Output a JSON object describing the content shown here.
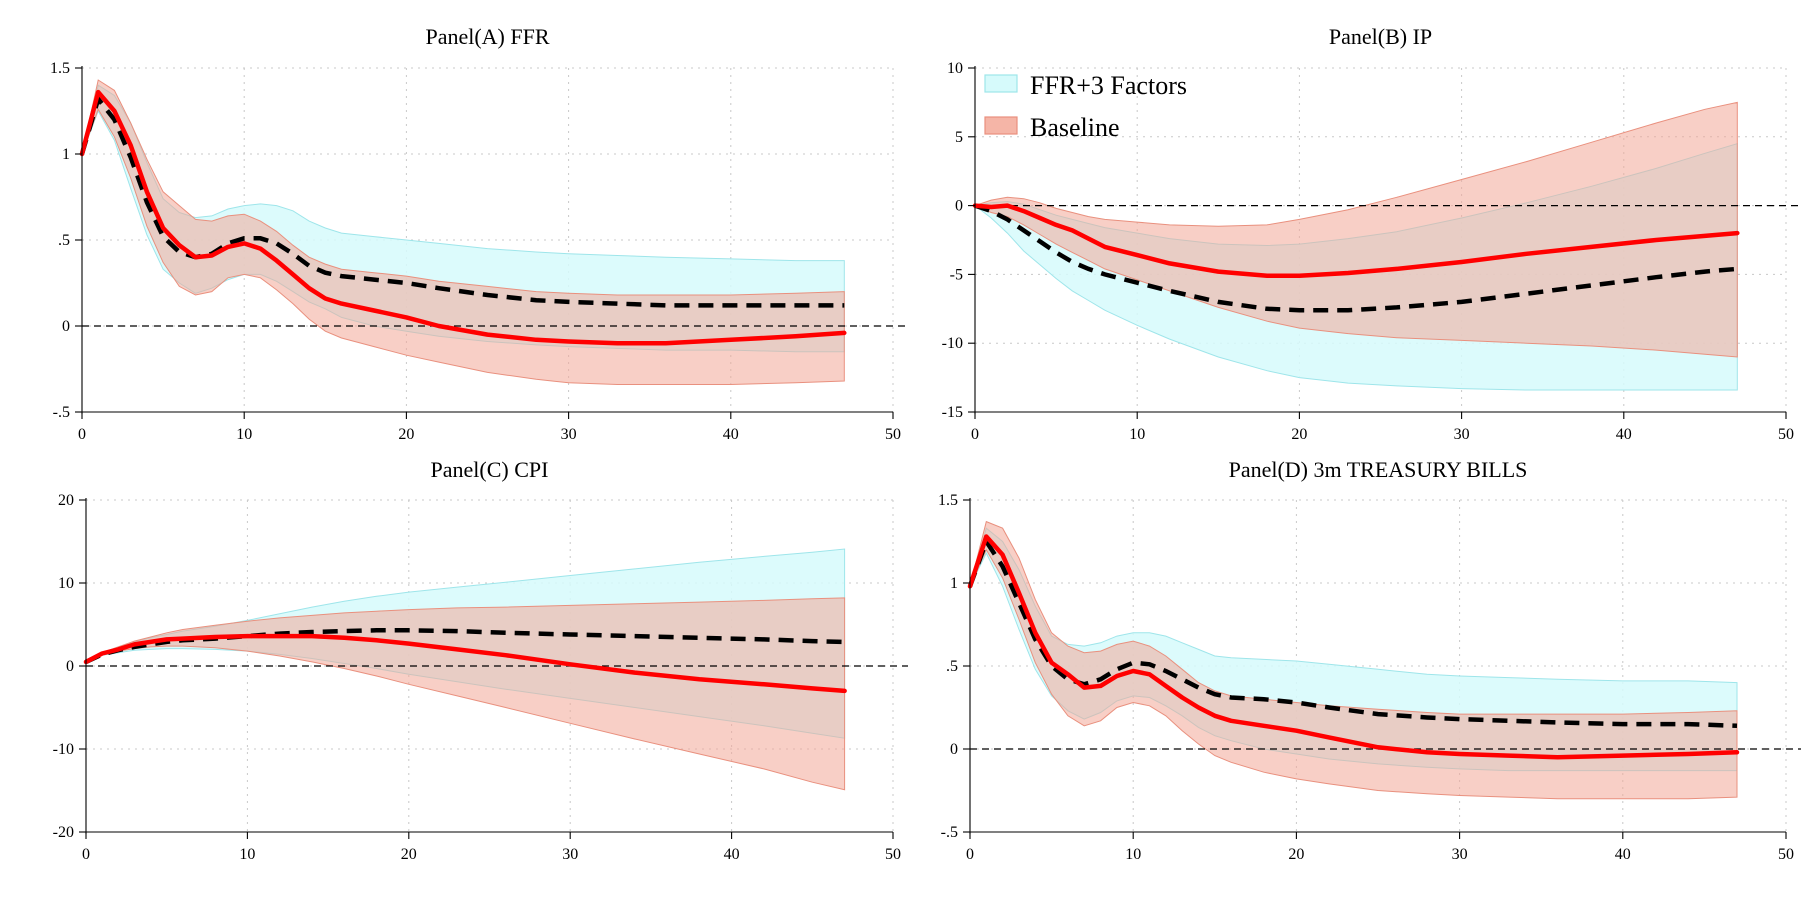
{
  "legend": {
    "position": "top-left of Panel(B)",
    "items": [
      {
        "label": "FFR+3 Factors",
        "color": "#d6fafb"
      },
      {
        "label": "Baseline",
        "color": "#f3a898"
      }
    ]
  },
  "colors": {
    "baseline_line": "#ff0000",
    "factor_line": "#000000",
    "factor_band": "#d6fafb",
    "baseline_band": "#f3a898"
  },
  "chart_data": [
    {
      "type": "line",
      "title": "Panel(A) FFR",
      "xlim": [
        0,
        50
      ],
      "ylim": [
        -0.5,
        1.5
      ],
      "xticks": [
        0,
        10,
        20,
        30,
        40,
        50
      ],
      "yticks": [
        -0.5,
        0,
        0.5,
        1,
        1.5
      ],
      "ytick_labels": [
        "-.5",
        "0",
        ".5",
        "1",
        "1.5"
      ],
      "zero_line": true,
      "grid": true,
      "x": [
        0,
        1,
        2,
        3,
        4,
        5,
        6,
        7,
        8,
        9,
        10,
        11,
        12,
        13,
        14,
        15,
        16,
        18,
        20,
        22,
        25,
        28,
        30,
        33,
        36,
        40,
        44,
        47
      ],
      "series": [
        {
          "name": "Baseline",
          "style": "solid-red",
          "values": [
            1.0,
            1.36,
            1.25,
            1.05,
            0.78,
            0.57,
            0.47,
            0.4,
            0.41,
            0.46,
            0.48,
            0.45,
            0.38,
            0.3,
            0.22,
            0.16,
            0.13,
            0.09,
            0.05,
            0.0,
            -0.05,
            -0.08,
            -0.09,
            -0.1,
            -0.1,
            -0.08,
            -0.06,
            -0.04
          ]
        },
        {
          "name": "FFR+3 Factors",
          "style": "dashed-black",
          "values": [
            1.0,
            1.32,
            1.2,
            0.98,
            0.72,
            0.52,
            0.43,
            0.4,
            0.42,
            0.48,
            0.51,
            0.51,
            0.48,
            0.42,
            0.35,
            0.31,
            0.29,
            0.27,
            0.25,
            0.22,
            0.18,
            0.15,
            0.14,
            0.13,
            0.12,
            0.12,
            0.12,
            0.12
          ]
        },
        {
          "name": "FFR+3 Factors band",
          "style": "band-cyan",
          "upper": [
            1.0,
            1.4,
            1.34,
            1.18,
            0.95,
            0.74,
            0.66,
            0.63,
            0.64,
            0.68,
            0.7,
            0.71,
            0.7,
            0.67,
            0.61,
            0.57,
            0.54,
            0.52,
            0.5,
            0.48,
            0.45,
            0.43,
            0.42,
            0.41,
            0.4,
            0.39,
            0.38,
            0.38
          ],
          "lower": [
            1.0,
            1.25,
            1.08,
            0.8,
            0.53,
            0.33,
            0.25,
            0.19,
            0.22,
            0.27,
            0.3,
            0.3,
            0.26,
            0.2,
            0.14,
            0.1,
            0.05,
            0.0,
            -0.03,
            -0.06,
            -0.09,
            -0.11,
            -0.12,
            -0.13,
            -0.14,
            -0.14,
            -0.15,
            -0.15
          ]
        },
        {
          "name": "Baseline band",
          "style": "band-red",
          "upper": [
            1.0,
            1.43,
            1.37,
            1.18,
            0.97,
            0.78,
            0.7,
            0.62,
            0.61,
            0.64,
            0.65,
            0.61,
            0.55,
            0.47,
            0.4,
            0.36,
            0.33,
            0.31,
            0.29,
            0.26,
            0.23,
            0.2,
            0.19,
            0.18,
            0.18,
            0.18,
            0.19,
            0.2
          ]
        },
        {
          "name": "Baseline band lower",
          "style": "band-red-lower",
          "lower": [
            1.0,
            1.26,
            1.1,
            0.86,
            0.58,
            0.37,
            0.23,
            0.18,
            0.2,
            0.28,
            0.3,
            0.28,
            0.21,
            0.13,
            0.04,
            -0.03,
            -0.07,
            -0.12,
            -0.17,
            -0.21,
            -0.27,
            -0.31,
            -0.33,
            -0.34,
            -0.34,
            -0.34,
            -0.33,
            -0.32
          ]
        }
      ]
    },
    {
      "type": "line",
      "title": "Panel(B) IP",
      "xlim": [
        0,
        50
      ],
      "ylim": [
        -15,
        10
      ],
      "xticks": [
        0,
        10,
        20,
        30,
        40,
        50
      ],
      "yticks": [
        -15,
        -10,
        -5,
        0,
        5,
        10
      ],
      "ytick_labels": [
        "-15",
        "-10",
        "-5",
        "0",
        "5",
        "10"
      ],
      "zero_line": true,
      "grid": true,
      "x": [
        0,
        1,
        2,
        3,
        4,
        5,
        6,
        7,
        8,
        10,
        12,
        15,
        18,
        20,
        23,
        26,
        30,
        34,
        38,
        42,
        45,
        47
      ],
      "series": [
        {
          "name": "Baseline",
          "style": "solid-red",
          "values": [
            0.0,
            -0.1,
            0.0,
            -0.4,
            -0.9,
            -1.4,
            -1.8,
            -2.4,
            -3.0,
            -3.6,
            -4.2,
            -4.8,
            -5.1,
            -5.1,
            -4.9,
            -4.6,
            -4.1,
            -3.5,
            -3.0,
            -2.5,
            -2.2,
            -2.0
          ]
        },
        {
          "name": "FFR+3 Factors",
          "style": "dashed-black",
          "values": [
            0.0,
            -0.4,
            -1.0,
            -1.8,
            -2.6,
            -3.4,
            -4.1,
            -4.6,
            -5.0,
            -5.6,
            -6.2,
            -7.0,
            -7.5,
            -7.6,
            -7.6,
            -7.4,
            -7.0,
            -6.4,
            -5.8,
            -5.2,
            -4.8,
            -4.6
          ]
        },
        {
          "name": "FFR+3 Factors band",
          "style": "band-cyan",
          "upper": [
            0.0,
            0.2,
            0.3,
            0.1,
            -0.3,
            -0.7,
            -1.0,
            -1.3,
            -1.6,
            -2.0,
            -2.4,
            -2.8,
            -2.9,
            -2.8,
            -2.4,
            -1.9,
            -0.9,
            0.2,
            1.4,
            2.7,
            3.8,
            4.5
          ],
          "lower": [
            0.0,
            -0.9,
            -2.0,
            -3.3,
            -4.3,
            -5.3,
            -6.2,
            -6.9,
            -7.6,
            -8.7,
            -9.7,
            -11.0,
            -12.0,
            -12.5,
            -12.9,
            -13.1,
            -13.3,
            -13.4,
            -13.4,
            -13.4,
            -13.4,
            -13.4
          ]
        },
        {
          "name": "Baseline band",
          "style": "band-red",
          "upper": [
            0.0,
            0.4,
            0.6,
            0.5,
            0.2,
            -0.2,
            -0.5,
            -0.8,
            -1.0,
            -1.2,
            -1.4,
            -1.5,
            -1.4,
            -1.0,
            -0.3,
            0.6,
            1.9,
            3.2,
            4.6,
            6.0,
            7.0,
            7.5
          ]
        },
        {
          "name": "Baseline band lower",
          "style": "band-red-lower",
          "lower": [
            0.0,
            -0.5,
            -0.8,
            -1.4,
            -2.1,
            -2.8,
            -3.4,
            -4.0,
            -4.6,
            -5.4,
            -6.2,
            -7.4,
            -8.4,
            -8.9,
            -9.3,
            -9.6,
            -9.8,
            -10.0,
            -10.2,
            -10.5,
            -10.8,
            -11.0
          ]
        }
      ]
    },
    {
      "type": "line",
      "title": "Panel(C) CPI",
      "xlim": [
        0,
        50
      ],
      "ylim": [
        -20,
        20
      ],
      "xticks": [
        0,
        10,
        20,
        30,
        40,
        50
      ],
      "yticks": [
        -20,
        -10,
        0,
        10,
        20
      ],
      "ytick_labels": [
        "-20",
        "-10",
        "0",
        "10",
        "20"
      ],
      "zero_line": true,
      "grid": true,
      "x": [
        0,
        1,
        2,
        3,
        4,
        5,
        6,
        8,
        10,
        12,
        14,
        16,
        18,
        20,
        23,
        26,
        30,
        34,
        38,
        42,
        45,
        47
      ],
      "series": [
        {
          "name": "Baseline",
          "style": "solid-red",
          "values": [
            0.5,
            1.5,
            2.0,
            2.6,
            2.9,
            3.2,
            3.3,
            3.5,
            3.6,
            3.6,
            3.6,
            3.4,
            3.1,
            2.7,
            2.0,
            1.3,
            0.2,
            -0.8,
            -1.6,
            -2.2,
            -2.7,
            -3.0
          ]
        },
        {
          "name": "FFR+3 Factors",
          "style": "dashed-black",
          "values": [
            0.5,
            1.4,
            1.9,
            2.3,
            2.6,
            2.9,
            3.1,
            3.3,
            3.6,
            3.9,
            4.1,
            4.2,
            4.3,
            4.3,
            4.2,
            4.0,
            3.8,
            3.6,
            3.4,
            3.2,
            3.0,
            2.9
          ]
        },
        {
          "name": "FFR+3 Factors band",
          "style": "band-cyan",
          "upper": [
            0.5,
            1.6,
            2.3,
            2.9,
            3.4,
            3.8,
            4.2,
            4.8,
            5.5,
            6.3,
            7.1,
            7.8,
            8.4,
            8.9,
            9.5,
            10.1,
            10.9,
            11.7,
            12.5,
            13.2,
            13.7,
            14.1
          ],
          "lower": [
            0.5,
            1.3,
            1.6,
            1.9,
            2.0,
            2.1,
            2.1,
            2.0,
            1.8,
            1.4,
            0.9,
            0.3,
            -0.3,
            -1.0,
            -1.9,
            -2.8,
            -3.9,
            -5.0,
            -6.1,
            -7.2,
            -8.1,
            -8.7
          ]
        },
        {
          "name": "Baseline band",
          "style": "band-red",
          "upper": [
            0.5,
            1.6,
            2.3,
            3.0,
            3.5,
            4.0,
            4.4,
            4.9,
            5.4,
            5.8,
            6.1,
            6.4,
            6.6,
            6.8,
            7.0,
            7.1,
            7.3,
            7.5,
            7.7,
            7.9,
            8.1,
            8.2
          ]
        },
        {
          "name": "Baseline band lower",
          "style": "band-red-lower",
          "lower": [
            0.5,
            1.4,
            1.8,
            2.1,
            2.3,
            2.4,
            2.4,
            2.2,
            1.8,
            1.2,
            0.5,
            -0.3,
            -1.2,
            -2.2,
            -3.6,
            -5.0,
            -6.9,
            -8.8,
            -10.6,
            -12.4,
            -14.0,
            -14.9
          ]
        }
      ]
    },
    {
      "type": "line",
      "title": "Panel(D) 3m TREASURY BILLS",
      "xlim": [
        0,
        50
      ],
      "ylim": [
        -0.5,
        1.5
      ],
      "xticks": [
        0,
        10,
        20,
        30,
        40,
        50
      ],
      "yticks": [
        -0.5,
        0,
        0.5,
        1,
        1.5
      ],
      "ytick_labels": [
        "-.5",
        "0",
        ".5",
        "1",
        "1.5"
      ],
      "zero_line": true,
      "grid": true,
      "x": [
        0,
        1,
        2,
        3,
        4,
        5,
        6,
        7,
        8,
        9,
        10,
        11,
        12,
        13,
        14,
        15,
        16,
        18,
        20,
        22,
        25,
        28,
        30,
        33,
        36,
        40,
        44,
        47
      ],
      "series": [
        {
          "name": "Baseline",
          "style": "solid-red",
          "values": [
            0.98,
            1.28,
            1.17,
            0.94,
            0.7,
            0.52,
            0.45,
            0.37,
            0.38,
            0.44,
            0.47,
            0.45,
            0.38,
            0.31,
            0.25,
            0.2,
            0.17,
            0.14,
            0.11,
            0.07,
            0.01,
            -0.02,
            -0.03,
            -0.04,
            -0.05,
            -0.04,
            -0.03,
            -0.02
          ]
        },
        {
          "name": "FFR+3 Factors",
          "style": "dashed-black",
          "values": [
            0.98,
            1.25,
            1.1,
            0.88,
            0.66,
            0.5,
            0.42,
            0.39,
            0.42,
            0.48,
            0.52,
            0.51,
            0.47,
            0.42,
            0.37,
            0.33,
            0.31,
            0.3,
            0.28,
            0.25,
            0.21,
            0.19,
            0.18,
            0.17,
            0.16,
            0.15,
            0.15,
            0.14
          ]
        },
        {
          "name": "FFR+3 Factors band",
          "style": "band-cyan",
          "upper": [
            0.98,
            1.33,
            1.25,
            1.08,
            0.86,
            0.68,
            0.63,
            0.62,
            0.64,
            0.68,
            0.7,
            0.7,
            0.68,
            0.64,
            0.6,
            0.56,
            0.55,
            0.54,
            0.53,
            0.51,
            0.48,
            0.45,
            0.44,
            0.43,
            0.42,
            0.41,
            0.41,
            0.4
          ]
        },
        {
          "name": "FFR+3 Factors band lower",
          "style": "band-cyan-lower",
          "lower": [
            0.98,
            1.18,
            0.98,
            0.72,
            0.48,
            0.32,
            0.23,
            0.18,
            0.22,
            0.29,
            0.32,
            0.31,
            0.26,
            0.2,
            0.13,
            0.08,
            0.05,
            0.0,
            -0.03,
            -0.06,
            -0.09,
            -0.11,
            -0.12,
            -0.13,
            -0.13,
            -0.13,
            -0.13,
            -0.13
          ]
        },
        {
          "name": "Baseline band",
          "style": "band-red",
          "upper": [
            0.98,
            1.37,
            1.33,
            1.15,
            0.9,
            0.7,
            0.62,
            0.58,
            0.59,
            0.63,
            0.65,
            0.62,
            0.56,
            0.48,
            0.4,
            0.35,
            0.32,
            0.3,
            0.28,
            0.26,
            0.24,
            0.22,
            0.21,
            0.21,
            0.21,
            0.21,
            0.22,
            0.23
          ]
        },
        {
          "name": "Baseline band lower",
          "style": "band-red-lower",
          "lower": [
            0.98,
            1.2,
            1.03,
            0.78,
            0.52,
            0.33,
            0.2,
            0.14,
            0.17,
            0.25,
            0.28,
            0.26,
            0.2,
            0.11,
            0.03,
            -0.04,
            -0.08,
            -0.14,
            -0.18,
            -0.21,
            -0.25,
            -0.27,
            -0.28,
            -0.29,
            -0.3,
            -0.3,
            -0.3,
            -0.29
          ]
        }
      ]
    }
  ]
}
